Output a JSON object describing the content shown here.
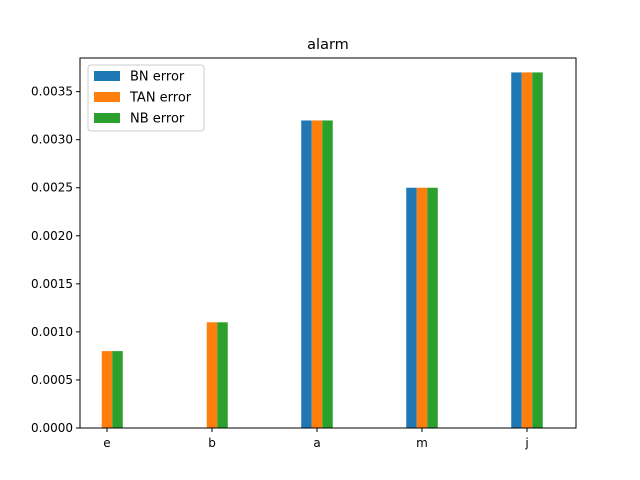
{
  "chart_data": {
    "type": "bar",
    "title": "alarm",
    "xlabel": "",
    "ylabel": "",
    "categories": [
      "e",
      "b",
      "a",
      "m",
      "j"
    ],
    "series": [
      {
        "name": "BN error",
        "color": "#1f77b4",
        "values": [
          0,
          0,
          0.0032,
          0.0025,
          0.0037
        ]
      },
      {
        "name": "TAN error",
        "color": "#ff7f0e",
        "values": [
          0.0008,
          0.0011,
          0.0032,
          0.0025,
          0.0037
        ]
      },
      {
        "name": "NB error",
        "color": "#2ca02c",
        "values": [
          0.0008,
          0.0011,
          0.0032,
          0.0025,
          0.0037
        ]
      }
    ],
    "ylim": [
      0,
      0.00385
    ],
    "yticks": [
      "0.0000",
      "0.0005",
      "0.0010",
      "0.0015",
      "0.0020",
      "0.0025",
      "0.0030",
      "0.0035"
    ],
    "grid": false,
    "legend": "top-left"
  }
}
